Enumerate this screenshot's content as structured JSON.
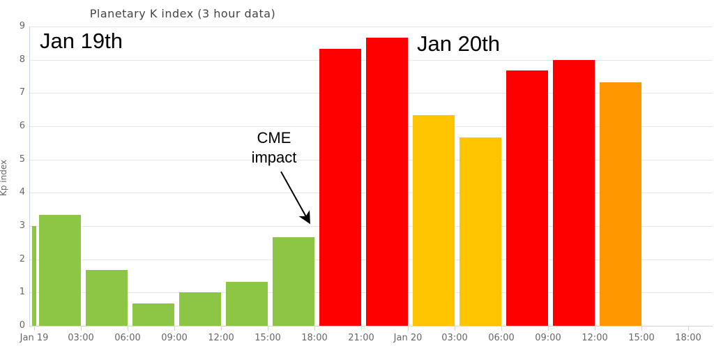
{
  "chart_data": {
    "type": "bar",
    "title": "Planetary K index (3 hour data)",
    "xlabel": "",
    "ylabel": "Kp index",
    "ylim": [
      0,
      9
    ],
    "grid": true,
    "legend": false,
    "colors": {
      "green": "#8CC644",
      "yellow": "#FFC600",
      "orange": "#FF9800",
      "red": "#FF0000",
      "gridline": "#e6e6e6",
      "axis": "#ccd6eb",
      "tick_text": "#666666"
    },
    "x_tick_labels": [
      "Jan 19",
      "03:00",
      "06:00",
      "09:00",
      "12:00",
      "15:00",
      "18:00",
      "21:00",
      "Jan 20",
      "03:00",
      "06:00",
      "09:00",
      "12:00",
      "15:00",
      "18:00"
    ],
    "y_tick_labels": [
      "0",
      "1",
      "2",
      "3",
      "4",
      "5",
      "6",
      "7",
      "8",
      "9"
    ],
    "bars": [
      {
        "slot": 0,
        "time": "Jan 19 00:00 (clipped)",
        "value": 3.0,
        "color": "green",
        "sliver": true
      },
      {
        "slot": 0,
        "time": "Jan 19 00:00-03:00",
        "value": 3.33,
        "color": "green"
      },
      {
        "slot": 1,
        "time": "Jan 19 03:00-06:00",
        "value": 1.67,
        "color": "green"
      },
      {
        "slot": 2,
        "time": "Jan 19 06:00-09:00",
        "value": 0.67,
        "color": "green"
      },
      {
        "slot": 3,
        "time": "Jan 19 09:00-12:00",
        "value": 1.0,
        "color": "green"
      },
      {
        "slot": 4,
        "time": "Jan 19 12:00-15:00",
        "value": 1.33,
        "color": "green"
      },
      {
        "slot": 5,
        "time": "Jan 19 15:00-18:00",
        "value": 2.67,
        "color": "green"
      },
      {
        "slot": 6,
        "time": "Jan 19 18:00-21:00",
        "value": 8.33,
        "color": "red"
      },
      {
        "slot": 7,
        "time": "Jan 19 21:00-Jan 20 00:00",
        "value": 8.67,
        "color": "red"
      },
      {
        "slot": 8,
        "time": "Jan 20 00:00-03:00",
        "value": 6.33,
        "color": "yellow"
      },
      {
        "slot": 9,
        "time": "Jan 20 03:00-06:00",
        "value": 5.67,
        "color": "yellow"
      },
      {
        "slot": 10,
        "time": "Jan 20 06:00-09:00",
        "value": 7.67,
        "color": "red"
      },
      {
        "slot": 11,
        "time": "Jan 20 09:00-12:00",
        "value": 8.0,
        "color": "red"
      },
      {
        "slot": 12,
        "time": "Jan 20 12:00-15:00",
        "value": 7.33,
        "color": "orange"
      }
    ],
    "annotations": {
      "day1": {
        "text": "Jan 19th"
      },
      "day2": {
        "text": "Jan 20th"
      },
      "cme": {
        "line1": "CME",
        "line2": "impact"
      }
    }
  }
}
